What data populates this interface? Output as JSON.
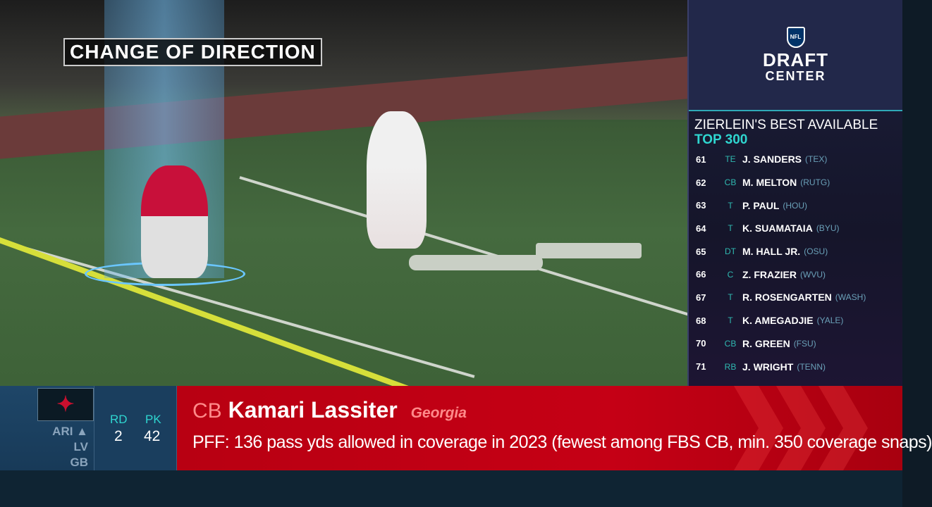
{
  "overlay": {
    "title": "CHANGE OF DIRECTION"
  },
  "sidebar": {
    "logo": {
      "shield": "NFL",
      "line1": "DRAFT",
      "line2": "CENTER"
    },
    "title": "ZIERLEIN'S BEST AVAILABLE",
    "subtitle": "TOP 300",
    "players": [
      {
        "rank": "61",
        "pos": "TE",
        "name": "J. SANDERS",
        "school": "(TEX)"
      },
      {
        "rank": "62",
        "pos": "CB",
        "name": "M. MELTON",
        "school": "(RUTG)"
      },
      {
        "rank": "63",
        "pos": "T",
        "name": "P. PAUL",
        "school": "(HOU)"
      },
      {
        "rank": "64",
        "pos": "T",
        "name": "K. SUAMATAIA",
        "school": "(BYU)"
      },
      {
        "rank": "65",
        "pos": "DT",
        "name": "M. HALL JR.",
        "school": "(OSU)"
      },
      {
        "rank": "66",
        "pos": "C",
        "name": "Z. FRAZIER",
        "school": "(WVU)"
      },
      {
        "rank": "67",
        "pos": "T",
        "name": "R. ROSENGARTEN",
        "school": "(WASH)"
      },
      {
        "rank": "68",
        "pos": "T",
        "name": "K. AMEGADJIE",
        "school": "(YALE)"
      },
      {
        "rank": "70",
        "pos": "CB",
        "name": "R. GREEN",
        "school": "(FSU)"
      },
      {
        "rank": "71",
        "pos": "RB",
        "name": "J. WRIGHT",
        "school": "(TENN)"
      }
    ]
  },
  "ticker": {
    "team_logo": "houston-texans-logo",
    "upcoming": [
      "ARI ▲",
      "LV",
      "GB"
    ],
    "round_label": "RD",
    "round": "2",
    "pick_label": "PK",
    "pick": "42",
    "position": "CB",
    "player": "Kamari Lassiter",
    "school": "Georgia",
    "fact": "PFF: 136 pass yds allowed in coverage in 2023 (fewest among FBS CB, min. 350 coverage snaps)"
  },
  "colors": {
    "accent": "#2fd6d0",
    "ticker_red": "#c50015",
    "panel": "#16344e"
  }
}
